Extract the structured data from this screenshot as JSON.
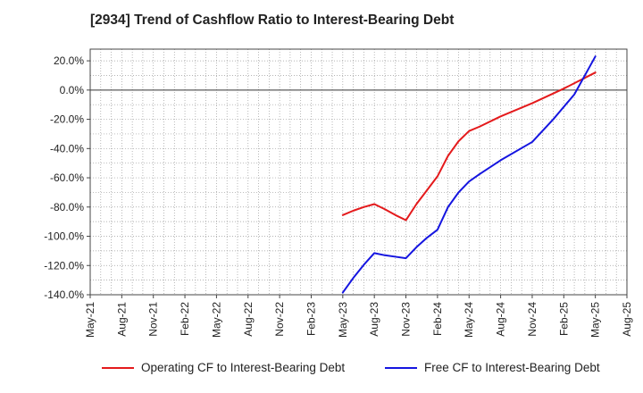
{
  "chart_data": {
    "type": "line",
    "title": "[2934]  Trend of Cashflow Ratio to Interest-Bearing Debt",
    "xlabel": "",
    "ylabel": "",
    "ylim": [
      -140,
      28
    ],
    "y_ticks": [
      20,
      0,
      -20,
      -40,
      -60,
      -80,
      -100,
      -120,
      -140
    ],
    "y_tick_labels": [
      "20.0%",
      "0.0%",
      "-20.0%",
      "-40.0%",
      "-60.0%",
      "-80.0%",
      "-100.0%",
      "-120.0%",
      "-140.0%"
    ],
    "x_tick_labels": [
      "May-21",
      "Aug-21",
      "Nov-21",
      "Feb-22",
      "May-22",
      "Aug-22",
      "Nov-22",
      "Feb-23",
      "May-23",
      "Aug-23",
      "Nov-23",
      "Feb-24",
      "May-24",
      "Aug-24",
      "Nov-24",
      "Feb-25",
      "May-25",
      "Aug-25"
    ],
    "x_months_range": [
      0,
      51
    ],
    "grid": true,
    "legend_position": "bottom",
    "series": [
      {
        "name": "Operating CF to Interest-Bearing Debt",
        "color": "#e41a1c",
        "x_month_index": [
          24,
          25,
          26,
          27,
          28,
          29,
          30,
          31,
          32,
          33,
          34,
          35,
          36,
          37,
          39,
          42,
          45,
          48
        ],
        "values": [
          -85.5,
          -82.5,
          -80,
          -78,
          -81.5,
          -85.5,
          -89,
          -78,
          -68.5,
          -59,
          -45,
          -35,
          -28,
          -25,
          -18,
          -9,
          1,
          12
        ]
      },
      {
        "name": "Free CF to Interest-Bearing Debt",
        "color": "#1515e0",
        "x_month_index": [
          24,
          25,
          26,
          27,
          28,
          29,
          30,
          31,
          32,
          33,
          34,
          35,
          36,
          37,
          39,
          42,
          44,
          46,
          48
        ],
        "values": [
          -138.5,
          -128.5,
          -119.5,
          -111.5,
          -113,
          -114,
          -115,
          -107.5,
          -101,
          -95.5,
          -80,
          -70,
          -62.5,
          -57.5,
          -48,
          -35.5,
          -20,
          -3,
          23
        ]
      }
    ]
  }
}
